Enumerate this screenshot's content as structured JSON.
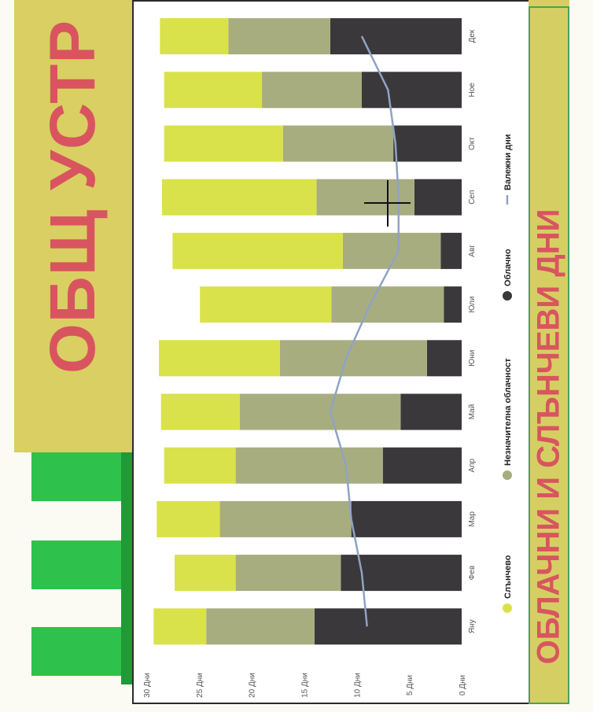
{
  "slide": {
    "title": "ОБЩ УСТР",
    "subtitle": "ОБЛАЧНИ И СЛЪНЧЕВИ ДНИ"
  },
  "colors": {
    "panel": "#d9cf63",
    "green": "#2ec24c",
    "title_red": "#d8555f",
    "sunny": "#d9e24a",
    "partly": "#a8ad80",
    "cloudy": "#3a383a",
    "rain_line": "#8fa3c4"
  },
  "chart_data": {
    "type": "bar",
    "stacked": true,
    "categories": [
      "Яну",
      "Фев",
      "Мар",
      "Апр",
      "Май",
      "Юни",
      "Юли",
      "Авг",
      "Сеп",
      "Окт",
      "Ное",
      "Дек"
    ],
    "ylim": [
      0,
      30
    ],
    "yticks": [
      "0 Дни",
      "5 Дни",
      "10 Дни",
      "15 Дни",
      "20 Дни",
      "25 Дни",
      "30 Дни"
    ],
    "series": [
      {
        "name": "Облачно",
        "type": "bar",
        "color": "#3a383a",
        "values": [
          14,
          11.5,
          10.5,
          7.5,
          5.8,
          3.3,
          1.7,
          2,
          4.5,
          6.5,
          9.5,
          12.5
        ]
      },
      {
        "name": "Незначителна облачност",
        "type": "bar",
        "color": "#a8ad80",
        "values": [
          10.3,
          10,
          12.5,
          14,
          15.3,
          14,
          10.7,
          9.3,
          9.3,
          10.5,
          9.5,
          9.7
        ]
      },
      {
        "name": "Слънчево",
        "type": "bar",
        "color": "#d9e24a",
        "values": [
          5,
          5.8,
          6,
          6.8,
          7.5,
          11.5,
          12.5,
          16.2,
          14.7,
          11.3,
          9.3,
          6.5
        ]
      },
      {
        "name": "Валежни дни",
        "type": "line",
        "color": "#8fa3c4",
        "values": [
          9,
          9.5,
          10.5,
          11,
          12.5,
          11,
          8.7,
          6,
          6,
          6.3,
          7,
          9.5
        ]
      }
    ],
    "legend": [
      "Слънчево",
      "Незначителна облачност",
      "Облачно",
      "Валежни дни"
    ]
  }
}
